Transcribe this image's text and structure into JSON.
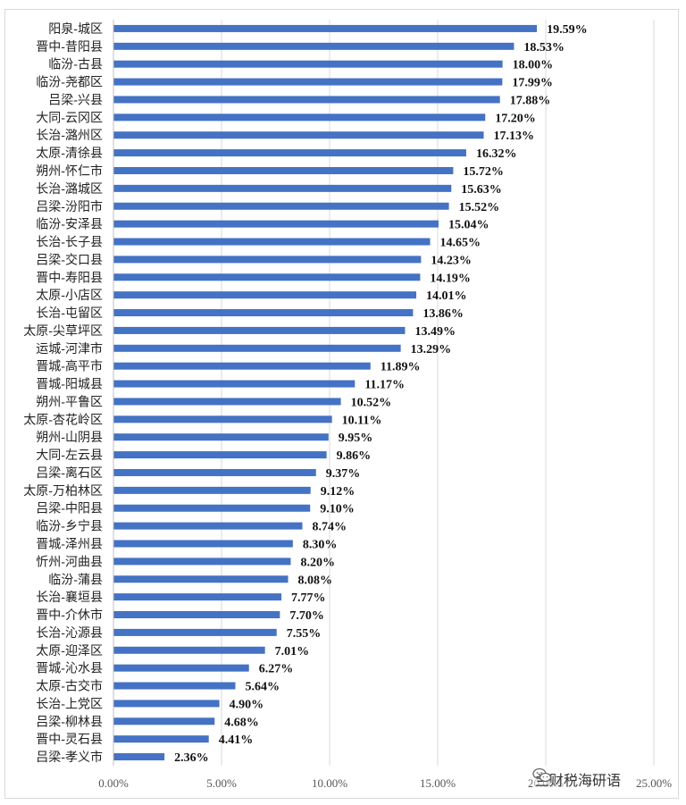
{
  "chart_data": {
    "type": "bar",
    "orientation": "horizontal",
    "title": "",
    "xlabel": "",
    "ylabel": "",
    "xlim": [
      0,
      25
    ],
    "x_ticks": [
      "0.00%",
      "5.00%",
      "10.00%",
      "15.00%",
      "20.00%",
      "25.00%"
    ],
    "grid": "vertical",
    "bar_color": "#4472c4",
    "categories": [
      "阳泉-城区",
      "晋中-昔阳县",
      "临汾-古县",
      "临汾-尧都区",
      "吕梁-兴县",
      "大同-云冈区",
      "长治-潞州区",
      "太原-清徐县",
      "朔州-怀仁市",
      "长治-潞城区",
      "吕梁-汾阳市",
      "临汾-安泽县",
      "长治-长子县",
      "吕梁-交口县",
      "晋中-寿阳县",
      "太原-小店区",
      "长治-屯留区",
      "太原-尖草坪区",
      "运城-河津市",
      "晋城-高平市",
      "晋城-阳城县",
      "朔州-平鲁区",
      "太原-杏花岭区",
      "朔州-山阴县",
      "大同-左云县",
      "吕梁-离石区",
      "太原-万柏林区",
      "吕梁-中阳县",
      "临汾-乡宁县",
      "晋城-泽州县",
      "忻州-河曲县",
      "临汾-蒲县",
      "长治-襄垣县",
      "晋中-介休市",
      "长治-沁源县",
      "太原-迎泽区",
      "晋城-沁水县",
      "太原-古交市",
      "长治-上党区",
      "吕梁-柳林县",
      "晋中-灵石县",
      "吕梁-孝义市"
    ],
    "values": [
      19.59,
      18.53,
      18.0,
      17.99,
      17.88,
      17.2,
      17.13,
      16.32,
      15.72,
      15.63,
      15.52,
      15.04,
      14.65,
      14.23,
      14.19,
      14.01,
      13.86,
      13.49,
      13.29,
      11.89,
      11.17,
      10.52,
      10.11,
      9.95,
      9.86,
      9.37,
      9.12,
      9.1,
      8.74,
      8.3,
      8.2,
      8.08,
      7.77,
      7.7,
      7.55,
      7.01,
      6.27,
      5.64,
      4.9,
      4.68,
      4.41,
      2.36
    ],
    "data_labels": [
      "19.59%",
      "18.53%",
      "18.00%",
      "17.99%",
      "17.88%",
      "17.20%",
      "17.13%",
      "16.32%",
      "15.72%",
      "15.63%",
      "15.52%",
      "15.04%",
      "14.65%",
      "14.23%",
      "14.19%",
      "14.01%",
      "13.86%",
      "13.49%",
      "13.29%",
      "11.89%",
      "11.17%",
      "10.52%",
      "10.11%",
      "9.95%",
      "9.86%",
      "9.37%",
      "9.12%",
      "9.10%",
      "8.74%",
      "8.30%",
      "8.20%",
      "8.08%",
      "7.77%",
      "7.70%",
      "7.55%",
      "7.01%",
      "6.27%",
      "5.64%",
      "4.90%",
      "4.68%",
      "4.41%",
      "2.36%"
    ]
  },
  "watermark": {
    "text": "兰财税海研语",
    "icon": "wechat-icon"
  }
}
